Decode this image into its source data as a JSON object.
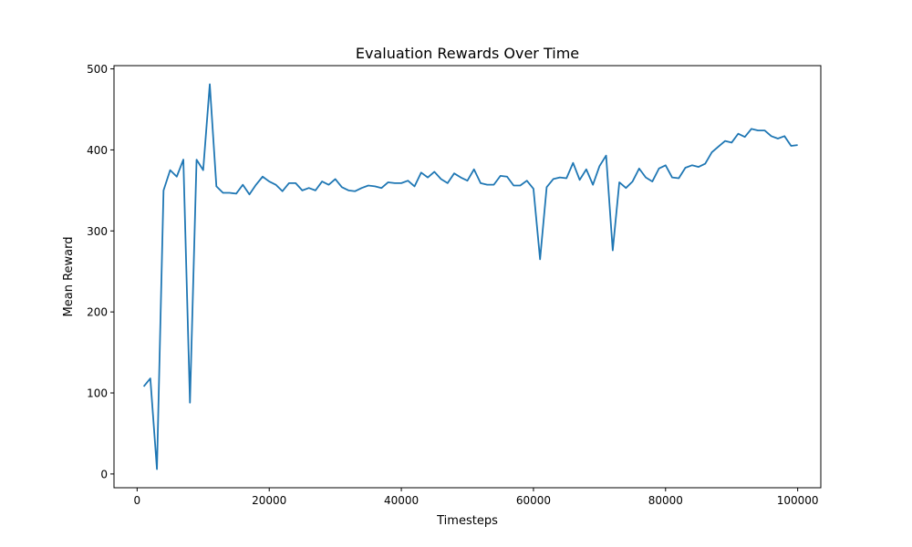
{
  "chart_data": {
    "type": "line",
    "title": "Evaluation Rewards Over Time",
    "xlabel": "Timesteps",
    "ylabel": "Mean Reward",
    "xlim": [
      -3500,
      103500
    ],
    "ylim": [
      -17,
      504
    ],
    "xticks": [
      0,
      20000,
      40000,
      60000,
      80000,
      100000
    ],
    "yticks": [
      0,
      100,
      200,
      300,
      400,
      500
    ],
    "grid": false,
    "line_color": "#1f77b4",
    "series": [
      {
        "x": [
          1000,
          2000,
          3000,
          4000,
          5000,
          6000,
          7000,
          8000,
          9000,
          10000,
          11000,
          12000,
          13000,
          14000,
          15000,
          16000,
          17000,
          18000,
          19000,
          20000,
          21000,
          22000,
          23000,
          24000,
          25000,
          26000,
          27000,
          28000,
          29000,
          30000,
          31000,
          32000,
          33000,
          34000,
          35000,
          36000,
          37000,
          38000,
          39000,
          40000,
          41000,
          42000,
          43000,
          44000,
          45000,
          46000,
          47000,
          48000,
          49000,
          50000,
          51000,
          52000,
          53000,
          54000,
          55000,
          56000,
          57000,
          58000,
          59000,
          60000,
          61000,
          62000,
          63000,
          64000,
          65000,
          66000,
          67000,
          68000,
          69000,
          70000,
          71000,
          72000,
          73000,
          74000,
          75000,
          76000,
          77000,
          78000,
          79000,
          80000,
          81000,
          82000,
          83000,
          84000,
          85000,
          86000,
          87000,
          88000,
          89000,
          90000,
          91000,
          92000,
          93000,
          94000,
          95000,
          96000,
          97000,
          98000,
          99000,
          100000
        ],
        "values": [
          108,
          118,
          6,
          350,
          375,
          367,
          388,
          88,
          388,
          375,
          481,
          355,
          347,
          347,
          346,
          357,
          345,
          357,
          367,
          361,
          357,
          349,
          359,
          359,
          350,
          353,
          350,
          361,
          357,
          364,
          354,
          350,
          349,
          353,
          356,
          355,
          353,
          360,
          359,
          359,
          362,
          355,
          372,
          366,
          373,
          364,
          359,
          371,
          366,
          362,
          376,
          359,
          357,
          357,
          368,
          367,
          356,
          356,
          362,
          352,
          265,
          354,
          364,
          366,
          365,
          384,
          363,
          376,
          357,
          380,
          393,
          276,
          360,
          353,
          361,
          377,
          366,
          361,
          377,
          381,
          366,
          365,
          378,
          381,
          379,
          383,
          397,
          404,
          411,
          409,
          420,
          416,
          426,
          424,
          424,
          417,
          414,
          417,
          405,
          406
        ]
      }
    ]
  }
}
